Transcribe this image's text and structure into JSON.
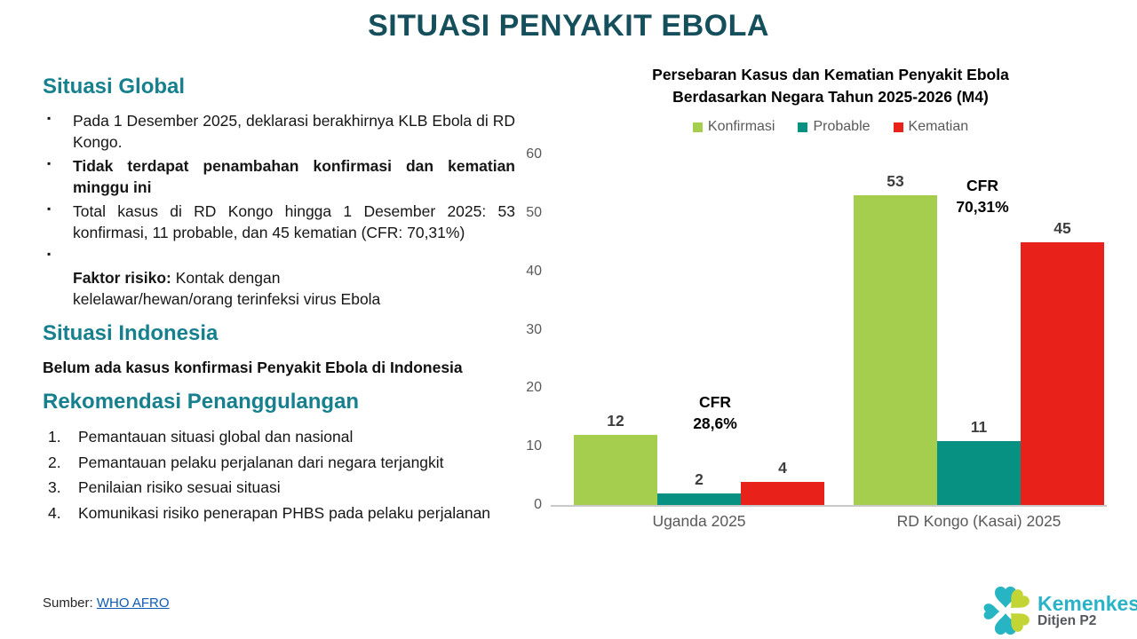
{
  "title": "SITUASI PENYAKIT EBOLA",
  "sections": {
    "global": {
      "heading": "Situasi Global",
      "items": [
        {
          "text": "Pada 1 Desember 2025, deklarasi berakhirnya KLB Ebola di RD Kongo."
        },
        {
          "text": "Tidak terdapat penambahan konfirmasi dan kematian minggu ini"
        },
        {
          "text": "Total kasus di RD Kongo hingga 1 Desember 2025: 53 konfirmasi, 11 probable, dan 45 kematian (CFR: 70,31%)"
        },
        {
          "lead": "Faktor risiko:",
          "text": " Kontak dengan\nkelelawar/hewan/orang terinfeksi virus Ebola"
        }
      ]
    },
    "indonesia": {
      "heading": "Situasi Indonesia",
      "body": "Belum ada kasus konfirmasi Penyakit Ebola di Indonesia"
    },
    "rekomendasi": {
      "heading": "Rekomendasi Penanggulangan",
      "items": [
        "Pemantauan situasi global dan nasional",
        "Pemantauan pelaku perjalanan dari negara terjangkit",
        "Penilaian risiko sesuai situasi",
        "Komunikasi risiko penerapan PHBS pada pelaku perjalanan"
      ]
    }
  },
  "source": {
    "label": "Sumber:",
    "link_text": "WHO AFRO"
  },
  "logo": {
    "name": "Kemenkes",
    "subtitle": "Ditjen P2",
    "icon": "kemenkes-clover-icon",
    "brand_teal": "#27b5c4",
    "brand_lime": "#c2d534",
    "text_cyan": "#2ab3c7",
    "text_gray": "#55585c"
  },
  "colors": {
    "slide_title": "#144f5b",
    "section_heading": "#17808e",
    "link": "#0f5cb5",
    "axis_text": "#595959"
  },
  "chart_data": {
    "type": "bar",
    "title": "Persebaran Kasus dan Kematian Penyakit Ebola\nBerdasarkan Negara Tahun 2025-2026 (M4)",
    "categories": [
      "Uganda 2025",
      "RD Kongo (Kasai) 2025"
    ],
    "series": [
      {
        "name": "Konfirmasi",
        "color": "#a5ce4e",
        "values": [
          12,
          53
        ]
      },
      {
        "name": "Probable",
        "color": "#069183",
        "values": [
          2,
          11
        ]
      },
      {
        "name": "Kematian",
        "color": "#e8211a",
        "values": [
          4,
          45
        ]
      }
    ],
    "xlabel": "",
    "ylabel": "",
    "ylim": [
      0,
      60
    ],
    "yticks": [
      0,
      10,
      20,
      30,
      40,
      50,
      60
    ],
    "grid": false,
    "legend_position": "top",
    "annotations": [
      {
        "text": "CFR\n28,6%",
        "category": "Uganda 2025"
      },
      {
        "text": "CFR\n70,31%",
        "category": "RD Kongo (Kasai) 2025"
      }
    ]
  }
}
